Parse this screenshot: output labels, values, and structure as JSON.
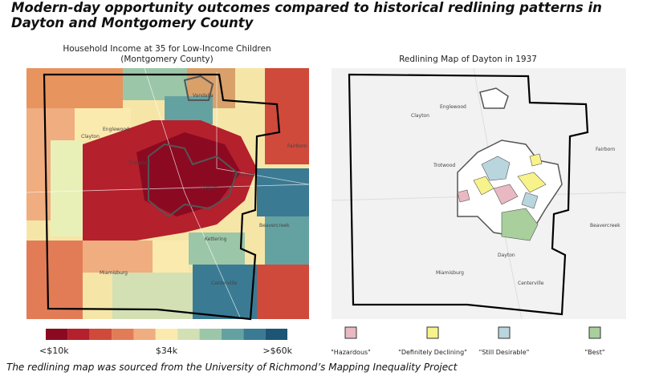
{
  "title": "Modern-day opportunity outcomes compared to historical redlining patterns in Dayton and Montgomery County",
  "left_map": {
    "title": [
      "Household Income at 35 for Low-Income Children",
      "(Montgomery County)"
    ],
    "places": [
      "Englewood",
      "Vandalia",
      "Clayton",
      "Trotwood",
      "Riverside",
      "Dayton",
      "Kettering",
      "Beavercreek",
      "Miamisburg",
      "Centerville",
      "Fairborn"
    ],
    "legend": {
      "colors": [
        "#8b0a22",
        "#b4202c",
        "#cf4a3a",
        "#e27c57",
        "#f0ad7f",
        "#fbeaae",
        "#d2e0b4",
        "#9cc6a8",
        "#64a2a2",
        "#3b7a93",
        "#1d5674"
      ],
      "labels": [
        "<$10k",
        "$34k",
        ">$60k"
      ]
    }
  },
  "right_map": {
    "title": "Redlining Map of Dayton in 1937",
    "places": [
      "Englewood",
      "Clayton",
      "Trotwood",
      "Fairborn",
      "Beavercreek",
      "Dayton",
      "Miamisburg",
      "Centerville"
    ],
    "legend": [
      {
        "label": "\"Hazardous\"",
        "color": "#e9b9c3"
      },
      {
        "label": "\"Definitely Declining\"",
        "color": "#f7f38a"
      },
      {
        "label": "\"Still Desirable\"",
        "color": "#b9d6de"
      },
      {
        "label": "\"Best\"",
        "color": "#a8cf9c"
      }
    ]
  },
  "caption": "The redlining map was sourced from the University of Richmond’s Mapping Inequality Project"
}
